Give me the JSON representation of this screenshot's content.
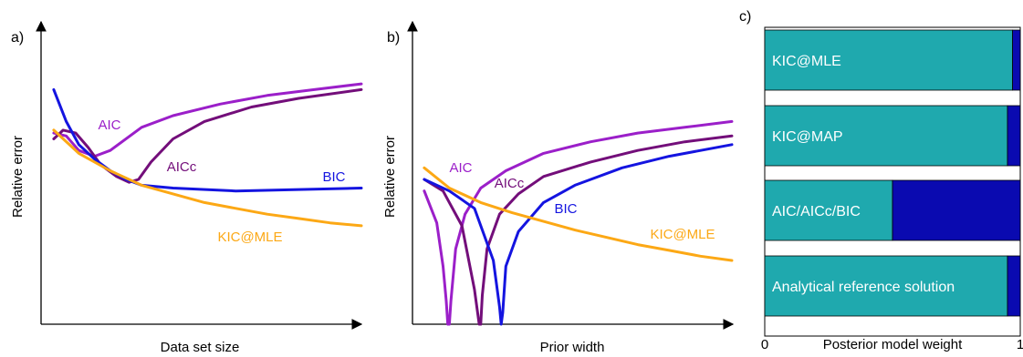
{
  "figure": {
    "panels": [
      {
        "letter": "a)",
        "xlabel": "Data set size",
        "ylabel": "Relative error"
      },
      {
        "letter": "b)",
        "xlabel": "Prior width",
        "ylabel": "Relative error"
      },
      {
        "letter": "c)",
        "xlabel": "Posterior model weight"
      }
    ]
  },
  "chart_data": [
    {
      "type": "line",
      "panel": "a)",
      "title": "",
      "xlabel": "Data set size",
      "ylabel": "Relative error",
      "xlim": [
        0,
        100
      ],
      "ylim": [
        0,
        100
      ],
      "ticks": false,
      "series": [
        {
          "name": "AIC",
          "color": "#9b1fc9",
          "x": [
            2,
            6,
            10,
            15,
            20,
            30,
            40,
            55,
            70,
            85,
            100
          ],
          "y": [
            66,
            65,
            60,
            58,
            60,
            68,
            72,
            76,
            79,
            81,
            83
          ]
        },
        {
          "name": "AICc",
          "color": "#730e7a",
          "x": [
            2,
            5,
            9,
            13,
            17,
            22,
            26,
            29,
            33,
            40,
            50,
            65,
            80,
            100
          ],
          "y": [
            64,
            67,
            66,
            61,
            55,
            51,
            49,
            50,
            56,
            64,
            70,
            75,
            78,
            81
          ]
        },
        {
          "name": "BIC",
          "color": "#1414e0",
          "x": [
            2,
            6,
            10,
            15,
            20,
            25,
            30,
            40,
            60,
            80,
            100
          ],
          "y": [
            81,
            70,
            62,
            57,
            53,
            50,
            48,
            47,
            46,
            46.5,
            47
          ]
        },
        {
          "name": "KIC@MLE",
          "color": "#fca815",
          "x": [
            2,
            10,
            20,
            30,
            40,
            50,
            60,
            70,
            80,
            90,
            100
          ],
          "y": [
            67,
            59,
            53,
            48,
            45,
            42,
            40,
            38,
            36.5,
            35,
            34
          ]
        }
      ]
    },
    {
      "type": "line",
      "panel": "b)",
      "title": "",
      "xlabel": "Prior width",
      "ylabel": "Relative error",
      "xlim": [
        0,
        100
      ],
      "ylim": [
        0,
        100
      ],
      "ticks": false,
      "series": [
        {
          "name": "AIC",
          "color": "#9b1fc9",
          "x": [
            2,
            6,
            8,
            9,
            9.5,
            10,
            10.5,
            12,
            15,
            20,
            28,
            40,
            55,
            70,
            85,
            100
          ],
          "y": [
            46,
            35,
            20,
            8,
            0,
            0,
            8,
            26,
            38,
            47,
            53,
            59,
            63,
            66,
            68,
            70
          ]
        },
        {
          "name": "AICc",
          "color": "#730e7a",
          "x": [
            2,
            8,
            14,
            18,
            19.5,
            20,
            20.5,
            22,
            26,
            32,
            40,
            55,
            70,
            85,
            100
          ],
          "y": [
            50,
            46,
            34,
            12,
            0,
            0,
            10,
            26,
            38,
            45,
            51,
            56,
            60,
            63,
            65
          ]
        },
        {
          "name": "BIC",
          "color": "#1414e0",
          "x": [
            2,
            10,
            18,
            24,
            26,
            26.5,
            27,
            28,
            32,
            40,
            50,
            65,
            80,
            100
          ],
          "y": [
            50,
            46,
            40,
            22,
            6,
            0,
            4,
            20,
            32,
            42,
            48,
            54,
            58,
            62
          ]
        },
        {
          "name": "KIC@MLE",
          "color": "#fca815",
          "x": [
            2,
            10,
            20,
            30,
            40,
            50,
            60,
            70,
            80,
            90,
            100
          ],
          "y": [
            54,
            47,
            42,
            38.5,
            35.5,
            32.5,
            30,
            27.5,
            25.5,
            23.5,
            22
          ]
        }
      ]
    },
    {
      "type": "bar",
      "panel": "c)",
      "orientation": "horizontal",
      "stacked": true,
      "title": "",
      "xlabel": "Posterior model weight",
      "xlim": [
        0,
        1
      ],
      "x_tick_labels": [
        "0",
        "1"
      ],
      "categories": [
        "KIC@MLE",
        "KIC@MAP",
        "AIC/AICc/BIC",
        "Analytical reference solution"
      ],
      "colors": [
        "#1fa9ae",
        "#0a0ab0"
      ],
      "values": [
        0.97,
        0.95,
        0.5,
        0.95
      ]
    }
  ]
}
